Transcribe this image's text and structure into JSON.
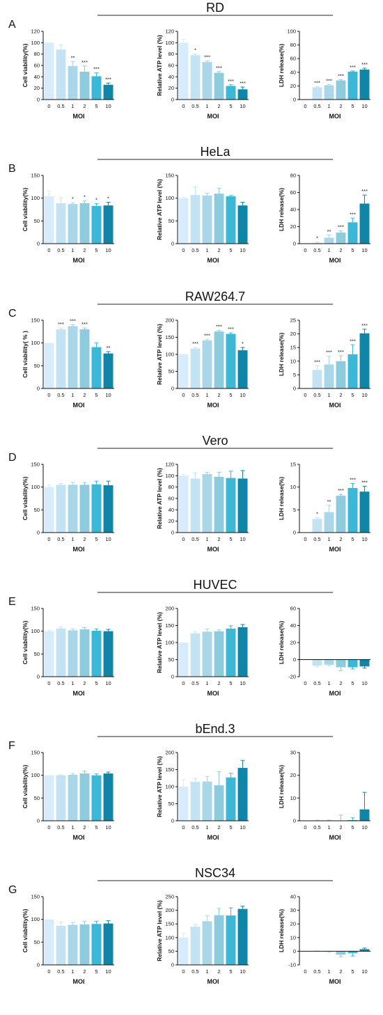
{
  "figure": {
    "colors": [
      "#d6ecfa",
      "#c4e3f2",
      "#a9d6e8",
      "#8ecbdd",
      "#3cb7d6",
      "#0f86a8"
    ],
    "chart_titles": [
      "Cell viability(%)",
      "Relative ATP level (%)",
      "LDH release(%)"
    ]
  },
  "chart_data": [
    {
      "row": "RD",
      "letter": "A",
      "charts": [
        {
          "type": "bar",
          "ylabel": "Cell viability(%)",
          "xlabel": "MOI",
          "categories": [
            "0",
            "0.5",
            "1",
            "2",
            "5",
            "10"
          ],
          "values": [
            100,
            88,
            59,
            49,
            41,
            26
          ],
          "errors": [
            0,
            8,
            8,
            10,
            6,
            3
          ],
          "sig": [
            "",
            "",
            "**",
            "***",
            "***",
            "***"
          ],
          "ylim": [
            0,
            120
          ],
          "yticks": [
            0,
            20,
            40,
            60,
            80,
            100,
            120
          ]
        },
        {
          "type": "bar",
          "ylabel": "Relative ATP level (%)",
          "xlabel": "MOI",
          "categories": [
            "0",
            "0.5",
            "1",
            "2",
            "5",
            "10"
          ],
          "values": [
            100,
            78,
            66,
            47,
            24,
            18
          ],
          "errors": [
            6,
            2,
            2,
            2,
            2,
            4
          ],
          "sig": [
            "",
            "*",
            "***",
            "***",
            "***",
            "***"
          ],
          "ylim": [
            0,
            120
          ],
          "yticks": [
            0,
            20,
            40,
            60,
            80,
            100,
            120
          ]
        },
        {
          "type": "bar",
          "ylabel": "LDH release(%)",
          "xlabel": "MOI",
          "categories": [
            "0",
            "0.5",
            "1",
            "2",
            "5",
            "10"
          ],
          "values": [
            0,
            18,
            21,
            28,
            41,
            44
          ],
          "errors": [
            0,
            1,
            1,
            1,
            1,
            2
          ],
          "sig": [
            "",
            "***",
            "***",
            "***",
            "***",
            "***"
          ],
          "ylim": [
            0,
            100
          ],
          "yticks": [
            0,
            20,
            40,
            60,
            80,
            100
          ]
        }
      ]
    },
    {
      "row": "HeLa",
      "letter": "B",
      "charts": [
        {
          "type": "bar",
          "ylabel": "Cell viability(%)",
          "xlabel": "MOI",
          "categories": [
            "0",
            "0.5",
            "1",
            "2",
            "5",
            "10"
          ],
          "values": [
            104,
            89,
            87,
            89,
            83,
            84
          ],
          "errors": [
            12,
            12,
            3,
            5,
            5,
            7
          ],
          "sig": [
            "",
            "",
            "*",
            "*",
            "*",
            "*"
          ],
          "ylim": [
            0,
            150
          ],
          "yticks": [
            0,
            50,
            100,
            150
          ]
        },
        {
          "type": "bar",
          "ylabel": "Relative ATP level (%)",
          "xlabel": "MOI",
          "categories": [
            "0",
            "0.5",
            "1",
            "2",
            "5",
            "10"
          ],
          "values": [
            100,
            107,
            106,
            110,
            104,
            84
          ],
          "errors": [
            2,
            18,
            5,
            12,
            2,
            7
          ],
          "sig": [
            "",
            "",
            "",
            "",
            "",
            ""
          ],
          "ylim": [
            0,
            150
          ],
          "yticks": [
            0,
            50,
            100,
            150
          ]
        },
        {
          "type": "bar",
          "ylabel": "LDH release(%)",
          "xlabel": "MOI",
          "categories": [
            "0",
            "0.5",
            "1",
            "2",
            "5",
            "10"
          ],
          "values": [
            0,
            1,
            7,
            13,
            25,
            47
          ],
          "errors": [
            0,
            1,
            3,
            2,
            5,
            10
          ],
          "sig": [
            "",
            "*",
            "**",
            "***",
            "***",
            "***"
          ],
          "ylim": [
            0,
            80
          ],
          "yticks": [
            0,
            20,
            40,
            60,
            80
          ]
        }
      ]
    },
    {
      "row": "RAW264.7",
      "letter": "C",
      "charts": [
        {
          "type": "bar",
          "ylabel": "Cell viability( % )",
          "xlabel": "MOI",
          "categories": [
            "0",
            "0.5",
            "1",
            "2",
            "5",
            "10"
          ],
          "values": [
            100,
            130,
            137,
            130,
            91,
            77
          ],
          "errors": [
            0,
            3,
            3,
            3,
            9,
            4
          ],
          "sig": [
            "",
            "***",
            "***",
            "***",
            "",
            "**"
          ],
          "ylim": [
            0,
            150
          ],
          "yticks": [
            0,
            50,
            100,
            150
          ]
        },
        {
          "type": "bar",
          "ylabel": "Relative ATP level (%)",
          "xlabel": "MOI",
          "categories": [
            "0",
            "0.5",
            "1",
            "2",
            "5",
            "10"
          ],
          "values": [
            100,
            117,
            141,
            167,
            160,
            112
          ],
          "errors": [
            0,
            3,
            3,
            3,
            3,
            8
          ],
          "sig": [
            "",
            "***",
            "***",
            "***",
            "***",
            "*"
          ],
          "ylim": [
            0,
            200
          ],
          "yticks": [
            0,
            50,
            100,
            150,
            200
          ]
        },
        {
          "type": "bar",
          "ylabel": "LDH release(%)",
          "xlabel": "MOI",
          "categories": [
            "0",
            "0.5",
            "1",
            "2",
            "5",
            "10"
          ],
          "values": [
            0,
            6.8,
            8.8,
            10,
            12.5,
            20.2
          ],
          "errors": [
            0,
            1.5,
            3,
            2,
            3.5,
            1.5
          ],
          "sig": [
            "",
            "***",
            "***",
            "***",
            "***",
            "***"
          ],
          "ylim": [
            0,
            25
          ],
          "yticks": [
            0,
            5,
            10,
            15,
            20,
            25
          ]
        }
      ]
    },
    {
      "row": "Vero",
      "letter": "D",
      "charts": [
        {
          "type": "bar",
          "ylabel": "Cell viability(%)",
          "xlabel": "MOI",
          "categories": [
            "0",
            "0.5",
            "1",
            "2",
            "5",
            "10"
          ],
          "values": [
            100,
            105,
            105,
            105,
            106,
            104
          ],
          "errors": [
            5,
            3,
            5,
            5,
            7,
            9
          ],
          "sig": [
            "",
            "",
            "",
            "",
            "",
            ""
          ],
          "ylim": [
            0,
            150
          ],
          "yticks": [
            0,
            50,
            100,
            150
          ]
        },
        {
          "type": "bar",
          "ylabel": "Relative ATP level (%)",
          "xlabel": "MOI",
          "categories": [
            "0",
            "0.5",
            "1",
            "2",
            "5",
            "10"
          ],
          "values": [
            100,
            95,
            103,
            98,
            96,
            95
          ],
          "errors": [
            2,
            10,
            3,
            8,
            12,
            14
          ],
          "sig": [
            "",
            "",
            "",
            "",
            "",
            ""
          ],
          "ylim": [
            0,
            120
          ],
          "yticks": [
            0,
            20,
            40,
            60,
            80,
            100,
            120
          ]
        },
        {
          "type": "bar",
          "ylabel": "LDH release(%)",
          "xlabel": "MOI",
          "categories": [
            "0",
            "0.5",
            "1",
            "2",
            "5",
            "10"
          ],
          "values": [
            0,
            3.0,
            4.5,
            8.1,
            9.8,
            9.0
          ],
          "errors": [
            0,
            0.3,
            1.5,
            0.3,
            1.0,
            1.2
          ],
          "sig": [
            "",
            "*",
            "**",
            "***",
            "***",
            "***"
          ],
          "ylim": [
            0,
            15
          ],
          "yticks": [
            0,
            5,
            10,
            15
          ]
        }
      ]
    },
    {
      "row": "HUVEC",
      "letter": "E",
      "charts": [
        {
          "type": "bar",
          "ylabel": "Cell viability(%)",
          "xlabel": "MOI",
          "categories": [
            "0",
            "0.5",
            "1",
            "2",
            "5",
            "10"
          ],
          "values": [
            100,
            106,
            102,
            104,
            101,
            100
          ],
          "errors": [
            2,
            3,
            3,
            4,
            4,
            4
          ],
          "sig": [
            "",
            "",
            "",
            "",
            "",
            ""
          ],
          "ylim": [
            0,
            150
          ],
          "yticks": [
            0,
            50,
            100,
            150
          ]
        },
        {
          "type": "bar",
          "ylabel": "Relative ATP level (%)",
          "xlabel": "MOI",
          "categories": [
            "0",
            "0.5",
            "1",
            "2",
            "5",
            "10"
          ],
          "values": [
            100,
            127,
            132,
            133,
            141,
            145
          ],
          "errors": [
            0,
            4,
            8,
            4,
            8,
            8
          ],
          "sig": [
            "",
            "",
            "",
            "",
            "",
            ""
          ],
          "ylim": [
            0,
            200
          ],
          "yticks": [
            0,
            50,
            100,
            150,
            200
          ]
        },
        {
          "type": "bar",
          "ylabel": "LDH release(%)",
          "xlabel": "MOI",
          "categories": [
            "0",
            "0.5",
            "1",
            "2",
            "5",
            "10"
          ],
          "values": [
            0,
            -7,
            -6,
            -9,
            -9,
            -8
          ],
          "errors": [
            0,
            1,
            1,
            4,
            2,
            2
          ],
          "sig": [
            "",
            "",
            "",
            "",
            "",
            ""
          ],
          "ylim": [
            -20,
            60
          ],
          "yticks": [
            -20,
            0,
            20,
            40,
            60
          ]
        }
      ]
    },
    {
      "row": "bEnd.3",
      "letter": "F",
      "charts": [
        {
          "type": "bar",
          "ylabel": "Cell viability(%)",
          "xlabel": "MOI",
          "categories": [
            "0",
            "0.5",
            "1",
            "2",
            "5",
            "10"
          ],
          "values": [
            100,
            100,
            101,
            104,
            100,
            104
          ],
          "errors": [
            0,
            1,
            3,
            5,
            3,
            3
          ],
          "sig": [
            "",
            "",
            "",
            "",
            "",
            ""
          ],
          "ylim": [
            0,
            150
          ],
          "yticks": [
            0,
            50,
            100,
            150
          ]
        },
        {
          "type": "bar",
          "ylabel": "Relative ATP level (%)",
          "xlabel": "MOI",
          "categories": [
            "0",
            "0.5",
            "1",
            "2",
            "5",
            "10"
          ],
          "values": [
            100,
            114,
            115,
            104,
            127,
            155
          ],
          "errors": [
            20,
            10,
            15,
            40,
            12,
            22
          ],
          "sig": [
            "",
            "",
            "",
            "",
            "",
            ""
          ],
          "ylim": [
            0,
            200
          ],
          "yticks": [
            0,
            50,
            100,
            150,
            200
          ]
        },
        {
          "type": "bar",
          "ylabel": "LDH release(%)",
          "xlabel": "MOI",
          "categories": [
            "0",
            "0.5",
            "1",
            "2",
            "5",
            "10"
          ],
          "values": [
            0,
            0,
            0,
            0,
            0.3,
            5
          ],
          "errors": [
            0,
            0.3,
            0.3,
            2.5,
            1,
            7.5
          ],
          "sig": [
            "",
            "",
            "",
            "",
            "",
            ""
          ],
          "ylim": [
            0,
            30
          ],
          "yticks": [
            0,
            10,
            20,
            30
          ]
        }
      ]
    },
    {
      "row": "NSC34",
      "letter": "G",
      "charts": [
        {
          "type": "bar",
          "ylabel": "Cell viability(%)",
          "xlabel": "MOI",
          "categories": [
            "0",
            "0.5",
            "1",
            "2",
            "5",
            "10"
          ],
          "values": [
            100,
            86,
            88,
            89,
            90,
            91
          ],
          "errors": [
            0,
            8,
            5,
            7,
            6,
            6
          ],
          "sig": [
            "",
            "",
            "",
            "",
            "",
            ""
          ],
          "ylim": [
            0,
            150
          ],
          "yticks": [
            0,
            50,
            100,
            150
          ]
        },
        {
          "type": "bar",
          "ylabel": "Relative ATP level (%)",
          "xlabel": "MOI",
          "categories": [
            "0",
            "0.5",
            "1",
            "2",
            "5",
            "10"
          ],
          "values": [
            100,
            140,
            160,
            182,
            181,
            205
          ],
          "errors": [
            15,
            8,
            20,
            25,
            28,
            10
          ],
          "sig": [
            "",
            "",
            "",
            "",
            "",
            ""
          ],
          "ylim": [
            0,
            250
          ],
          "yticks": [
            0,
            50,
            100,
            150,
            200,
            250
          ]
        },
        {
          "type": "bar",
          "ylabel": "LDH release(%)",
          "xlabel": "MOI",
          "categories": [
            "0",
            "0.5",
            "1",
            "2",
            "5",
            "10"
          ],
          "values": [
            0,
            0,
            -0.3,
            -2.5,
            -1.5,
            1.5
          ],
          "errors": [
            0,
            0.3,
            0.5,
            1.5,
            2,
            0.8
          ],
          "sig": [
            "",
            "",
            "",
            "",
            "",
            ""
          ],
          "ylim": [
            -10,
            40
          ],
          "yticks": [
            -10,
            0,
            10,
            20,
            30,
            40
          ]
        }
      ]
    }
  ]
}
